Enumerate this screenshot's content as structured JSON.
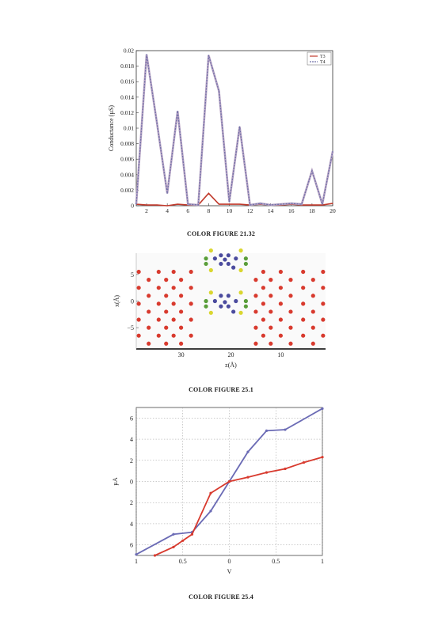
{
  "captions": {
    "fig1": "COLOR FIGURE 21.32",
    "fig2": "COLOR FIGURE 25.1",
    "fig3": "COLOR FIGURE 25.4"
  },
  "chart_data": [
    {
      "type": "line",
      "title": "",
      "xlabel": "",
      "ylabel": "Conductance (µS)",
      "xlim": [
        1,
        20
      ],
      "ylim": [
        0,
        0.02
      ],
      "xticks": [
        "2",
        "4",
        "6",
        "8",
        "10",
        "12",
        "14",
        "16",
        "18",
        "20"
      ],
      "yticks": [
        "0",
        "0.002",
        "0.004",
        "0.006",
        "0.008",
        "0.01",
        "0.012",
        "0.014",
        "0.016",
        "0.018",
        "0.02"
      ],
      "legend": "top-right",
      "x": [
        1,
        2,
        3,
        4,
        5,
        6,
        7,
        8,
        9,
        10,
        11,
        12,
        13,
        14,
        15,
        16,
        17,
        18,
        19,
        20
      ],
      "series": [
        {
          "name": "T3",
          "color": "#c0392b",
          "style": "solid",
          "values": [
            0.0002,
            0.0001,
            0.0001,
            0.0,
            0.0002,
            0.0001,
            0.0001,
            0.0016,
            0.0002,
            0.0002,
            0.0002,
            0.0001,
            0.0002,
            0.0001,
            0.0001,
            0.0002,
            0.0001,
            0.0001,
            0.0001,
            0.0003
          ]
        },
        {
          "name": "T4",
          "color": "#6f6fa8",
          "style": "dashed",
          "values": [
            0.0002,
            0.0195,
            0.0107,
            0.0016,
            0.0122,
            0.0002,
            0.0001,
            0.0194,
            0.0148,
            0.0005,
            0.0102,
            0.0001,
            0.0003,
            0.0001,
            0.0002,
            0.0003,
            0.0002,
            0.0045,
            0.0002,
            0.007
          ]
        }
      ]
    },
    {
      "type": "scatter",
      "title": "",
      "xlabel": "z(Å)",
      "ylabel": "x(Å)",
      "xlim": [
        39,
        1
      ],
      "ylim": [
        -9,
        9
      ],
      "xticks": [
        "30",
        "20",
        "10"
      ],
      "yticks": [
        "5",
        "0",
        "−5"
      ],
      "legend": "none",
      "series": [
        {
          "name": "",
          "color": "#d83a2e",
          "points": [
            [
              38.5,
              5.5
            ],
            [
              38.5,
              2.5
            ],
            [
              38.5,
              -0.5
            ],
            [
              38.5,
              -3.5
            ],
            [
              38.5,
              -6.5
            ],
            [
              36.5,
              4
            ],
            [
              36.5,
              1
            ],
            [
              36.5,
              -2
            ],
            [
              36.5,
              -5
            ],
            [
              36.5,
              -8
            ],
            [
              34.5,
              5.5
            ],
            [
              34.5,
              2.5
            ],
            [
              34.5,
              -0.5
            ],
            [
              34.5,
              -3.5
            ],
            [
              34.5,
              -6.5
            ],
            [
              33,
              4
            ],
            [
              33,
              1
            ],
            [
              33,
              -2
            ],
            [
              33,
              -5
            ],
            [
              33,
              -8
            ],
            [
              31.5,
              5.5
            ],
            [
              31.5,
              2.5
            ],
            [
              31.5,
              -0.5
            ],
            [
              31.5,
              -3.5
            ],
            [
              31.5,
              -6.5
            ],
            [
              30,
              4
            ],
            [
              30,
              1
            ],
            [
              30,
              -2
            ],
            [
              30,
              -5
            ],
            [
              30,
              -8
            ],
            [
              28,
              5.5
            ],
            [
              28,
              2.5
            ],
            [
              28,
              -0.5
            ],
            [
              28,
              -3.5
            ],
            [
              28,
              -6.5
            ],
            [
              15,
              4
            ],
            [
              15,
              1
            ],
            [
              15,
              -2
            ],
            [
              15,
              -5
            ],
            [
              15,
              -8
            ],
            [
              13.5,
              5.5
            ],
            [
              13.5,
              2.5
            ],
            [
              13.5,
              -0.5
            ],
            [
              13.5,
              -3.5
            ],
            [
              13.5,
              -6.5
            ],
            [
              12,
              4
            ],
            [
              12,
              1
            ],
            [
              12,
              -2
            ],
            [
              12,
              -5
            ],
            [
              12,
              -8
            ],
            [
              10,
              5.5
            ],
            [
              10,
              2.5
            ],
            [
              10,
              -0.5
            ],
            [
              10,
              -3.5
            ],
            [
              10,
              -6.5
            ],
            [
              8,
              4
            ],
            [
              8,
              1
            ],
            [
              8,
              -2
            ],
            [
              8,
              -5
            ],
            [
              8,
              -8
            ],
            [
              5.5,
              5.5
            ],
            [
              5.5,
              2.5
            ],
            [
              5.5,
              -0.5
            ],
            [
              5.5,
              -3.5
            ],
            [
              5.5,
              -6.5
            ],
            [
              3.5,
              4
            ],
            [
              3.5,
              1
            ],
            [
              3.5,
              -2
            ],
            [
              3.5,
              -5
            ],
            [
              3.5,
              -8
            ],
            [
              1.5,
              5.5
            ],
            [
              1.5,
              2.5
            ],
            [
              1.5,
              -0.5
            ],
            [
              1.5,
              -3.5
            ],
            [
              1.5,
              -6.5
            ]
          ]
        },
        {
          "name": "",
          "color": "#4b4b9e",
          "points": [
            [
              22,
              8.6
            ],
            [
              20.5,
              8.6
            ],
            [
              19,
              8
            ],
            [
              23.2,
              8
            ],
            [
              21.2,
              7.8
            ],
            [
              22,
              7
            ],
            [
              20.5,
              7
            ],
            [
              19.5,
              6.3
            ],
            [
              22,
              1
            ],
            [
              20.5,
              1
            ],
            [
              19,
              0
            ],
            [
              23.2,
              0
            ],
            [
              21.2,
              -0.2
            ],
            [
              22,
              -1
            ],
            [
              20.5,
              -1
            ],
            [
              19.5,
              -2
            ]
          ]
        },
        {
          "name": "",
          "color": "#dad630",
          "points": [
            [
              24,
              9.5
            ],
            [
              18,
              9.5
            ],
            [
              24,
              5.8
            ],
            [
              18,
              5.8
            ],
            [
              24,
              1.6
            ],
            [
              18,
              1.6
            ],
            [
              24,
              -2.2
            ],
            [
              18,
              -2.2
            ]
          ]
        },
        {
          "name": "",
          "color": "#5a9e3a",
          "points": [
            [
              25,
              8
            ],
            [
              17,
              8
            ],
            [
              25,
              7
            ],
            [
              17,
              7
            ],
            [
              25,
              0
            ],
            [
              17,
              0
            ],
            [
              25,
              -1
            ],
            [
              17,
              -1
            ]
          ]
        }
      ]
    },
    {
      "type": "line",
      "title": "",
      "xlabel": "V",
      "ylabel": "µA",
      "xlim": [
        -1,
        1
      ],
      "ylim": [
        -7,
        7
      ],
      "xticks": [
        "1",
        "0.5",
        "0",
        "0.5",
        "1"
      ],
      "xtick_values": [
        -1,
        -0.5,
        0,
        0.5,
        1
      ],
      "yticks": [
        "6",
        "4",
        "2",
        "0",
        "2",
        "4",
        "6"
      ],
      "ytick_values": [
        6,
        4,
        2,
        0,
        -2,
        -4,
        -6
      ],
      "grid": true,
      "legend": "none",
      "series": [
        {
          "name": "",
          "color": "#6b6bb5",
          "points": [
            [
              -1,
              -6.9
            ],
            [
              -0.6,
              -5.0
            ],
            [
              -0.4,
              -4.8
            ],
            [
              -0.2,
              -2.8
            ],
            [
              0,
              0
            ],
            [
              0.2,
              2.8
            ],
            [
              0.4,
              4.8
            ],
            [
              0.6,
              4.9
            ],
            [
              1,
              6.9
            ]
          ]
        },
        {
          "name": "",
          "color": "#d83a2e",
          "points": [
            [
              -0.8,
              -7.0
            ],
            [
              -0.6,
              -6.2
            ],
            [
              -0.5,
              -5.6
            ],
            [
              -0.4,
              -5.0
            ],
            [
              -0.2,
              -1.1
            ],
            [
              0,
              0
            ],
            [
              0.2,
              0.4
            ],
            [
              0.4,
              0.85
            ],
            [
              0.6,
              1.2
            ],
            [
              0.8,
              1.8
            ],
            [
              1,
              2.3
            ]
          ]
        }
      ]
    }
  ]
}
